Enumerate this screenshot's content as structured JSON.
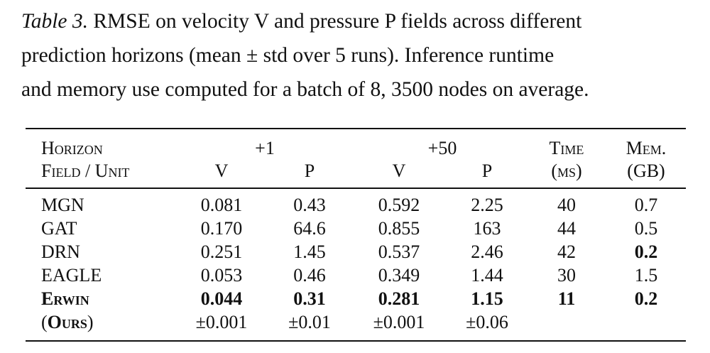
{
  "caption": {
    "label": "Table 3.",
    "lines": [
      " RMSE on velocity V and pressure P fields across different",
      "prediction horizons (mean ± std over 5 runs). Inference runtime",
      "and memory use computed for a batch of 8, 3500 nodes on average."
    ]
  },
  "header": {
    "horizon": "Horizon",
    "h1": "+1",
    "h50": "+50",
    "time": "Time",
    "mem": "Mem.",
    "field_unit": "Field / Unit",
    "v1": "V",
    "p1": "P",
    "v50": "V",
    "p50": "P",
    "time_unit": "(ms)",
    "mem_unit": "(GB)"
  },
  "rows": [
    {
      "name": "MGN",
      "v1": "0.081",
      "p1": "0.43",
      "v50": "0.592",
      "p50": "2.25",
      "time": "40",
      "mem": "0.7"
    },
    {
      "name": "GAT",
      "v1": "0.170",
      "p1": "64.6",
      "v50": "0.855",
      "p50": "163",
      "time": "44",
      "mem": "0.5"
    },
    {
      "name": "DRN",
      "v1": "0.251",
      "p1": "1.45",
      "v50": "0.537",
      "p50": "2.46",
      "time": "42",
      "mem": "0.2"
    },
    {
      "name": "EAGLE",
      "v1": "0.053",
      "p1": "0.46",
      "v50": "0.349",
      "p50": "1.44",
      "time": "30",
      "mem": "1.5"
    },
    {
      "name": "Erwin",
      "v1": "0.044",
      "p1": "0.31",
      "v50": "0.281",
      "p50": "1.15",
      "time": "11",
      "mem": "0.2"
    }
  ],
  "ours": {
    "open": "(",
    "name": "Ours",
    "close": ")",
    "v1_std": "±0.001",
    "p1_std": "±0.01",
    "v50_std": "±0.001",
    "p50_std": "±0.06"
  }
}
